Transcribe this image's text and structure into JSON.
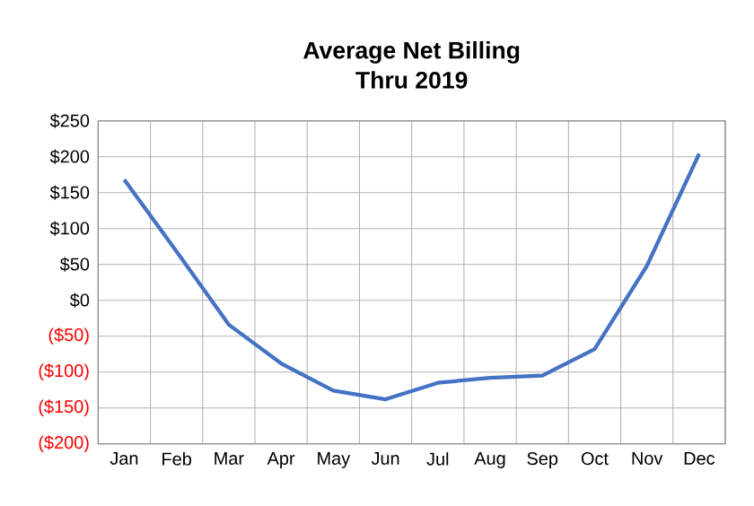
{
  "chart_data": {
    "type": "line",
    "title": "Average Net Billing\nThru 2019",
    "categories": [
      "Jan",
      "Feb",
      "Mar",
      "Apr",
      "May",
      "Jun",
      "Jul",
      "Aug",
      "Sep",
      "Oct",
      "Nov",
      "Dec"
    ],
    "series": [
      {
        "color": "#4472c4",
        "values": [
          168,
          68,
          -34,
          -88,
          -126,
          -138,
          -115,
          -108,
          -105,
          -68,
          48,
          204
        ]
      }
    ],
    "ylim": [
      -200,
      250
    ],
    "yticks": [
      {
        "value": -200,
        "label": "($200)"
      },
      {
        "value": -150,
        "label": "($150)"
      },
      {
        "value": -100,
        "label": "($100)"
      },
      {
        "value": -50,
        "label": "($50)"
      },
      {
        "value": 0,
        "label": "$0"
      },
      {
        "value": 50,
        "label": "$50"
      },
      {
        "value": 100,
        "label": "$100"
      },
      {
        "value": 150,
        "label": "$150"
      },
      {
        "value": 200,
        "label": "$200"
      },
      {
        "value": 250,
        "label": "$250"
      }
    ],
    "grid": true,
    "marker": "none",
    "line_style": "solid"
  }
}
